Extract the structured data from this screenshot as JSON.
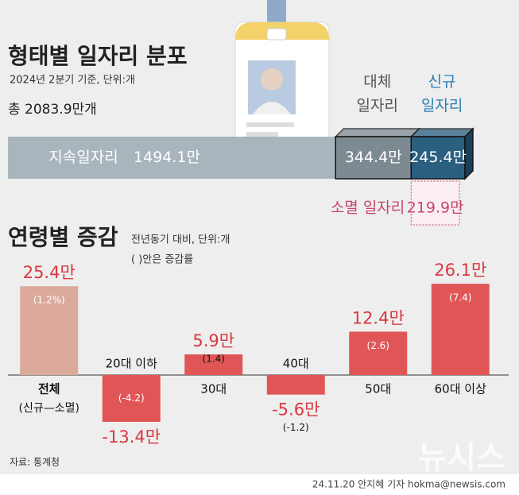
{
  "chart_data": [
    {
      "type": "stacked-bar",
      "title": "형태별 일자리 분포",
      "subtitle": "2024년 2분기 기준, 단위:개",
      "total": "총 2083.9만개",
      "series": [
        {
          "name": "지속일자리",
          "color": "#a9b5bc",
          "values": [
            1494.1
          ],
          "value_labels": [
            "1494.1만"
          ]
        },
        {
          "name": "대체\n일자리",
          "color": "#7e8a92",
          "values": [
            344.4
          ],
          "value_labels": [
            "344.4만"
          ]
        },
        {
          "name": "신규\n일자리",
          "color": "#2b5f80",
          "values": [
            245.4
          ],
          "value_labels": [
            "245.4만"
          ]
        }
      ],
      "lost": {
        "name": "소멸 일자리",
        "color": "#c8466a",
        "values": [
          219.9
        ],
        "value_labels": [
          "219.9만"
        ]
      }
    },
    {
      "type": "bar",
      "title": "연령별 증감",
      "notes": [
        "전년동기 대비, 단위:개",
        "( )안은 증감률"
      ],
      "categories": [
        "전체",
        "20대 이하",
        "30대",
        "40대",
        "50대",
        "60대 이상"
      ],
      "category_note": "(신규—소멸)",
      "values": [
        25.4,
        -13.4,
        5.9,
        -5.6,
        12.4,
        26.1
      ],
      "value_labels": [
        "25.4만",
        "-13.4만",
        "5.9만",
        "-5.6만",
        "12.4만",
        "26.1만"
      ],
      "rates": [
        1.2,
        -4.2,
        1.4,
        -1.2,
        2.6,
        7.4
      ],
      "rate_labels": [
        "(1.2%)",
        "(-4.2)",
        "(1.4)",
        "(-1.2)",
        "(2.6)",
        "(7.4)"
      ],
      "colors": [
        "#dcaa9a",
        "#e05656",
        "#e05656",
        "#e05656",
        "#e05656",
        "#e05656"
      ]
    }
  ],
  "source": "자료: 통계청",
  "credit": "24.11.20 안지혜 기자 hokma@newsis.com",
  "logo": "뉴시스"
}
